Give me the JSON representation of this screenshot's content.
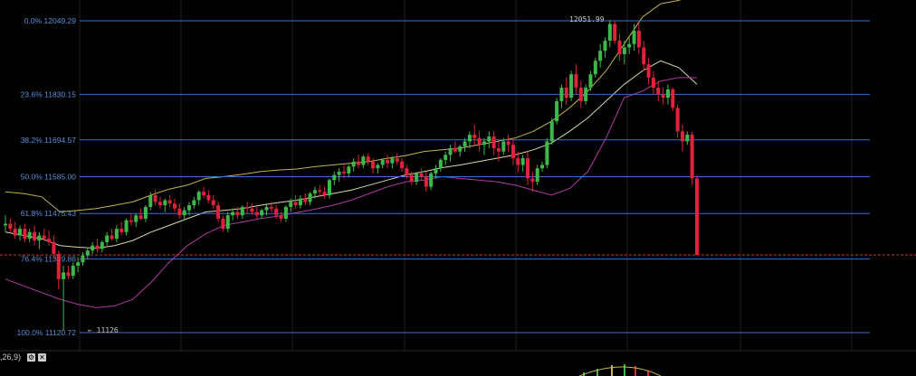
{
  "chart_data": {
    "type": "candlestick",
    "fibonacci_levels": [
      {
        "label": "0.0% 12049.29",
        "ratio": 0.0,
        "price": 12049.29
      },
      {
        "label": "23.6% 11830.15",
        "ratio": 0.236,
        "price": 11830.15
      },
      {
        "label": "38.2% 11694.57",
        "ratio": 0.382,
        "price": 11694.57
      },
      {
        "label": "50.0% 11585.00",
        "ratio": 0.5,
        "price": 11585.0
      },
      {
        "label": "61.8% 11475.43",
        "ratio": 0.618,
        "price": 11475.43
      },
      {
        "label": "76.4% 11339.86",
        "ratio": 0.764,
        "price": 11339.86
      },
      {
        "label": "100.0% 11120.72",
        "ratio": 1.0,
        "price": 11120.72
      }
    ],
    "high_label": "12051.99",
    "low_label": "11126",
    "high_price": 12051.99,
    "low_price": 11126,
    "current_price": 11352,
    "ylim": [
      11100,
      12100
    ],
    "colors": {
      "up": "#3fb84b",
      "down": "#e2223b",
      "fib": "#3b6fd1",
      "fib_label": "#5b8fd8",
      "upper_band": "#c8b44a",
      "middle_band": "#d8d8a8",
      "lower_band": "#b03aa0",
      "grid": "#1f1f1f",
      "price_line": "#c0392b",
      "background": "#000000"
    },
    "upper_band": [
      11540,
      11535,
      11525,
      11480,
      11485,
      11490,
      11500,
      11510,
      11530,
      11548,
      11560,
      11580,
      11585,
      11592,
      11600,
      11605,
      11608,
      11615,
      11620,
      11625,
      11630,
      11640,
      11648,
      11660,
      11665,
      11670,
      11680,
      11690,
      11700,
      11720,
      11750,
      11790,
      11840,
      11900,
      11980,
      12060,
      12100,
      12110,
      12130
    ],
    "middle_band": [
      11420,
      11410,
      11400,
      11380,
      11375,
      11372,
      11380,
      11395,
      11420,
      11440,
      11460,
      11480,
      11485,
      11490,
      11500,
      11508,
      11515,
      11525,
      11535,
      11545,
      11560,
      11575,
      11590,
      11600,
      11612,
      11620,
      11630,
      11640,
      11650,
      11665,
      11685,
      11720,
      11760,
      11810,
      11860,
      11900,
      11930,
      11910,
      11860
    ],
    "lower_band": [
      11280,
      11260,
      11240,
      11220,
      11205,
      11195,
      11200,
      11220,
      11270,
      11330,
      11380,
      11415,
      11440,
      11450,
      11460,
      11468,
      11478,
      11488,
      11500,
      11515,
      11535,
      11555,
      11570,
      11575,
      11585,
      11580,
      11575,
      11570,
      11560,
      11545,
      11530,
      11550,
      11600,
      11700,
      11820,
      11840,
      11870,
      11880,
      11880
    ],
    "candles": [
      [
        11440,
        11470,
        11420,
        11445
      ],
      [
        11445,
        11460,
        11420,
        11430
      ],
      [
        11430,
        11450,
        11400,
        11410
      ],
      [
        11410,
        11440,
        11395,
        11430
      ],
      [
        11430,
        11445,
        11390,
        11400
      ],
      [
        11400,
        11430,
        11390,
        11420
      ],
      [
        11420,
        11440,
        11380,
        11395
      ],
      [
        11395,
        11420,
        11370,
        11410
      ],
      [
        11410,
        11430,
        11395,
        11400
      ],
      [
        11400,
        11425,
        11380,
        11390
      ],
      [
        11390,
        11410,
        11340,
        11355
      ],
      [
        11355,
        11365,
        11250,
        11280
      ],
      [
        11280,
        11320,
        11126,
        11300
      ],
      [
        11300,
        11320,
        11280,
        11290
      ],
      [
        11290,
        11330,
        11280,
        11320
      ],
      [
        11320,
        11345,
        11300,
        11330
      ],
      [
        11330,
        11360,
        11320,
        11350
      ],
      [
        11350,
        11375,
        11340,
        11365
      ],
      [
        11365,
        11390,
        11355,
        11380
      ],
      [
        11380,
        11400,
        11360,
        11370
      ],
      [
        11370,
        11395,
        11360,
        11390
      ],
      [
        11390,
        11420,
        11380,
        11410
      ],
      [
        11410,
        11430,
        11395,
        11400
      ],
      [
        11400,
        11440,
        11390,
        11430
      ],
      [
        11430,
        11450,
        11410,
        11420
      ],
      [
        11420,
        11460,
        11410,
        11455
      ],
      [
        11455,
        11475,
        11440,
        11450
      ],
      [
        11450,
        11475,
        11435,
        11470
      ],
      [
        11470,
        11490,
        11455,
        11460
      ],
      [
        11460,
        11500,
        11450,
        11495
      ],
      [
        11495,
        11540,
        11485,
        11530
      ],
      [
        11530,
        11545,
        11500,
        11510
      ],
      [
        11510,
        11525,
        11490,
        11500
      ],
      [
        11500,
        11520,
        11480,
        11515
      ],
      [
        11515,
        11530,
        11495,
        11505
      ],
      [
        11505,
        11520,
        11480,
        11490
      ],
      [
        11490,
        11505,
        11460,
        11470
      ],
      [
        11470,
        11495,
        11455,
        11485
      ],
      [
        11485,
        11510,
        11470,
        11500
      ],
      [
        11500,
        11525,
        11490,
        11515
      ],
      [
        11515,
        11545,
        11500,
        11540
      ],
      [
        11540,
        11555,
        11520,
        11530
      ],
      [
        11530,
        11545,
        11505,
        11515
      ],
      [
        11515,
        11530,
        11490,
        11500
      ],
      [
        11500,
        11510,
        11450,
        11460
      ],
      [
        11460,
        11470,
        11420,
        11430
      ],
      [
        11430,
        11480,
        11420,
        11470
      ],
      [
        11470,
        11490,
        11455,
        11480
      ],
      [
        11480,
        11495,
        11460,
        11470
      ],
      [
        11470,
        11500,
        11460,
        11495
      ],
      [
        11495,
        11510,
        11475,
        11490
      ],
      [
        11490,
        11505,
        11470,
        11480
      ],
      [
        11480,
        11495,
        11460,
        11470
      ],
      [
        11470,
        11490,
        11460,
        11485
      ],
      [
        11485,
        11505,
        11470,
        11495
      ],
      [
        11495,
        11510,
        11480,
        11490
      ],
      [
        11490,
        11500,
        11460,
        11470
      ],
      [
        11470,
        11480,
        11450,
        11460
      ],
      [
        11460,
        11500,
        11450,
        11495
      ],
      [
        11495,
        11520,
        11480,
        11510
      ],
      [
        11510,
        11530,
        11490,
        11500
      ],
      [
        11500,
        11530,
        11490,
        11520
      ],
      [
        11520,
        11535,
        11500,
        11510
      ],
      [
        11510,
        11540,
        11500,
        11535
      ],
      [
        11535,
        11555,
        11520,
        11545
      ],
      [
        11545,
        11560,
        11525,
        11540
      ],
      [
        11540,
        11555,
        11520,
        11530
      ],
      [
        11530,
        11580,
        11520,
        11575
      ],
      [
        11575,
        11600,
        11560,
        11590
      ],
      [
        11590,
        11610,
        11570,
        11600
      ],
      [
        11600,
        11620,
        11580,
        11595
      ],
      [
        11595,
        11620,
        11585,
        11615
      ],
      [
        11615,
        11640,
        11600,
        11630
      ],
      [
        11630,
        11650,
        11610,
        11620
      ],
      [
        11620,
        11650,
        11610,
        11645
      ],
      [
        11645,
        11655,
        11620,
        11630
      ],
      [
        11630,
        11640,
        11595,
        11610
      ],
      [
        11610,
        11625,
        11595,
        11620
      ],
      [
        11620,
        11640,
        11610,
        11635
      ],
      [
        11635,
        11650,
        11610,
        11625
      ],
      [
        11625,
        11645,
        11610,
        11640
      ],
      [
        11640,
        11655,
        11620,
        11630
      ],
      [
        11630,
        11640,
        11600,
        11610
      ],
      [
        11610,
        11620,
        11580,
        11590
      ],
      [
        11590,
        11600,
        11560,
        11570
      ],
      [
        11570,
        11600,
        11560,
        11595
      ],
      [
        11595,
        11610,
        11575,
        11585
      ],
      [
        11585,
        11600,
        11540,
        11555
      ],
      [
        11555,
        11600,
        11545,
        11595
      ],
      [
        11595,
        11620,
        11580,
        11610
      ],
      [
        11610,
        11640,
        11600,
        11635
      ],
      [
        11635,
        11660,
        11620,
        11650
      ],
      [
        11650,
        11680,
        11630,
        11670
      ],
      [
        11670,
        11690,
        11655,
        11660
      ],
      [
        11660,
        11680,
        11645,
        11675
      ],
      [
        11675,
        11700,
        11660,
        11690
      ],
      [
        11690,
        11720,
        11670,
        11710
      ],
      [
        11710,
        11740,
        11680,
        11700
      ],
      [
        11700,
        11720,
        11660,
        11680
      ],
      [
        11680,
        11700,
        11650,
        11690
      ],
      [
        11690,
        11720,
        11670,
        11705
      ],
      [
        11705,
        11720,
        11650,
        11670
      ],
      [
        11670,
        11690,
        11630,
        11660
      ],
      [
        11660,
        11700,
        11650,
        11690
      ],
      [
        11690,
        11710,
        11660,
        11680
      ],
      [
        11680,
        11700,
        11620,
        11640
      ],
      [
        11640,
        11660,
        11600,
        11620
      ],
      [
        11620,
        11650,
        11600,
        11640
      ],
      [
        11640,
        11660,
        11560,
        11580
      ],
      [
        11580,
        11600,
        11540,
        11570
      ],
      [
        11570,
        11620,
        11560,
        11610
      ],
      [
        11610,
        11630,
        11600,
        11620
      ],
      [
        11620,
        11700,
        11610,
        11690
      ],
      [
        11690,
        11760,
        11680,
        11750
      ],
      [
        11750,
        11820,
        11740,
        11810
      ],
      [
        11810,
        11860,
        11790,
        11850
      ],
      [
        11850,
        11880,
        11800,
        11820
      ],
      [
        11820,
        11900,
        11810,
        11890
      ],
      [
        11890,
        11920,
        11830,
        11850
      ],
      [
        11850,
        11870,
        11790,
        11810
      ],
      [
        11810,
        11860,
        11800,
        11850
      ],
      [
        11850,
        11900,
        11840,
        11890
      ],
      [
        11890,
        11940,
        11880,
        11930
      ],
      [
        11930,
        11980,
        11910,
        11960
      ],
      [
        11960,
        12000,
        11940,
        11990
      ],
      [
        11990,
        12052,
        11970,
        12040
      ],
      [
        12040,
        12050,
        11980,
        11990
      ],
      [
        11990,
        12010,
        11930,
        11950
      ],
      [
        11950,
        11990,
        11920,
        11970
      ],
      [
        11970,
        12000,
        11950,
        11980
      ],
      [
        11980,
        12040,
        11960,
        12020
      ],
      [
        12020,
        12040,
        11950,
        11970
      ],
      [
        11970,
        11990,
        11900,
        11920
      ],
      [
        11920,
        11940,
        11860,
        11880
      ],
      [
        11880,
        11900,
        11830,
        11850
      ],
      [
        11850,
        11870,
        11810,
        11830
      ],
      [
        11830,
        11850,
        11800,
        11820
      ],
      [
        11820,
        11860,
        11800,
        11845
      ],
      [
        11845,
        11850,
        11780,
        11790
      ],
      [
        11790,
        11800,
        11700,
        11720
      ],
      [
        11720,
        11740,
        11660,
        11690
      ],
      [
        11690,
        11720,
        11680,
        11710
      ],
      [
        11710,
        11720,
        11560,
        11580
      ],
      [
        11580,
        11590,
        11352,
        11352
      ]
    ]
  },
  "toolbar": {
    "indicator_label": ",26,9)",
    "btn_settings": "⚙",
    "btn_close": "✕"
  }
}
